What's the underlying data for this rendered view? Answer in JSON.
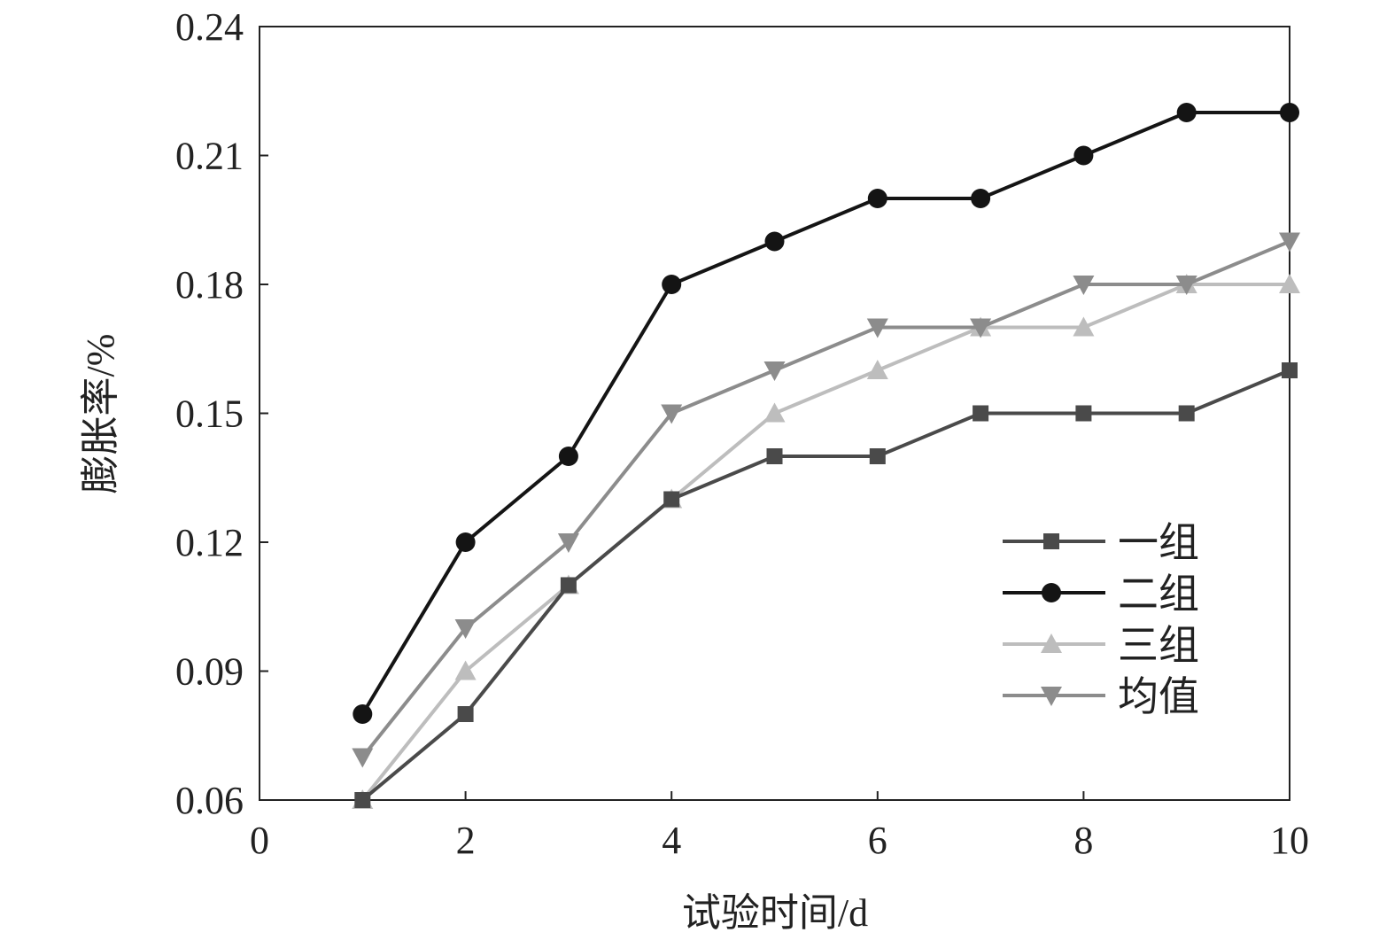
{
  "chart_data": {
    "type": "line",
    "title": "",
    "xlabel": "试验时间/d",
    "ylabel": "膨胀率/%",
    "xlim": [
      0,
      10
    ],
    "ylim": [
      0.06,
      0.24
    ],
    "xticks": [
      0,
      2,
      4,
      6,
      8,
      10
    ],
    "xtick_labels": [
      "0",
      "2",
      "4",
      "6",
      "8",
      "10"
    ],
    "yticks": [
      0.06,
      0.09,
      0.12,
      0.15,
      0.18,
      0.21,
      0.24
    ],
    "ytick_labels": [
      "0.06",
      "0.09",
      "0.12",
      "0.15",
      "0.18",
      "0.21",
      "0.24"
    ],
    "grid": false,
    "legend_position": "bottom-right",
    "x": [
      1,
      2,
      3,
      4,
      5,
      6,
      7,
      8,
      9,
      10
    ],
    "series": [
      {
        "name": "一组",
        "marker": "square",
        "color": "#4a4a4a",
        "values": [
          0.06,
          0.08,
          0.11,
          0.13,
          0.14,
          0.14,
          0.15,
          0.15,
          0.15,
          0.16
        ]
      },
      {
        "name": "二组",
        "marker": "circle",
        "color": "#141414",
        "values": [
          0.08,
          0.12,
          0.14,
          0.18,
          0.19,
          0.2,
          0.2,
          0.21,
          0.22,
          0.22
        ]
      },
      {
        "name": "三组",
        "marker": "triangle-up",
        "color": "#bdbdbd",
        "values": [
          0.06,
          0.09,
          0.11,
          0.13,
          0.15,
          0.16,
          0.17,
          0.17,
          0.18,
          0.18
        ]
      },
      {
        "name": "均值",
        "marker": "triangle-down",
        "color": "#8c8c8c",
        "values": [
          0.07,
          0.1,
          0.12,
          0.15,
          0.16,
          0.17,
          0.17,
          0.18,
          0.18,
          0.19
        ]
      }
    ]
  }
}
